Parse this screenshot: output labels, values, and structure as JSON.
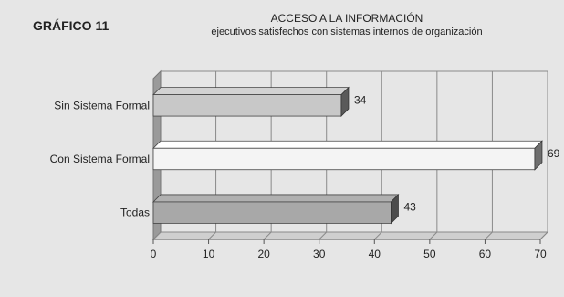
{
  "header": {
    "figure_label": "GRÁFICO 11"
  },
  "chart_data": {
    "type": "bar",
    "orientation": "horizontal",
    "three_d": true,
    "title": "ACCESO A LA INFORMACIÓN",
    "subtitle": "ejecutivos satisfechos con sistemas internos de organización",
    "categories": [
      "Sin Sistema Formal",
      "Con Sistema Formal",
      "Todas"
    ],
    "values": [
      34,
      69,
      43
    ],
    "bar_colors": [
      "#c8c8c8",
      "#f4f4f4",
      "#a8a8a8"
    ],
    "xlim": [
      0,
      70
    ],
    "xticks": [
      0,
      10,
      20,
      30,
      40,
      50,
      60,
      70
    ],
    "grid": true,
    "legend": false,
    "data_labels": true
  }
}
